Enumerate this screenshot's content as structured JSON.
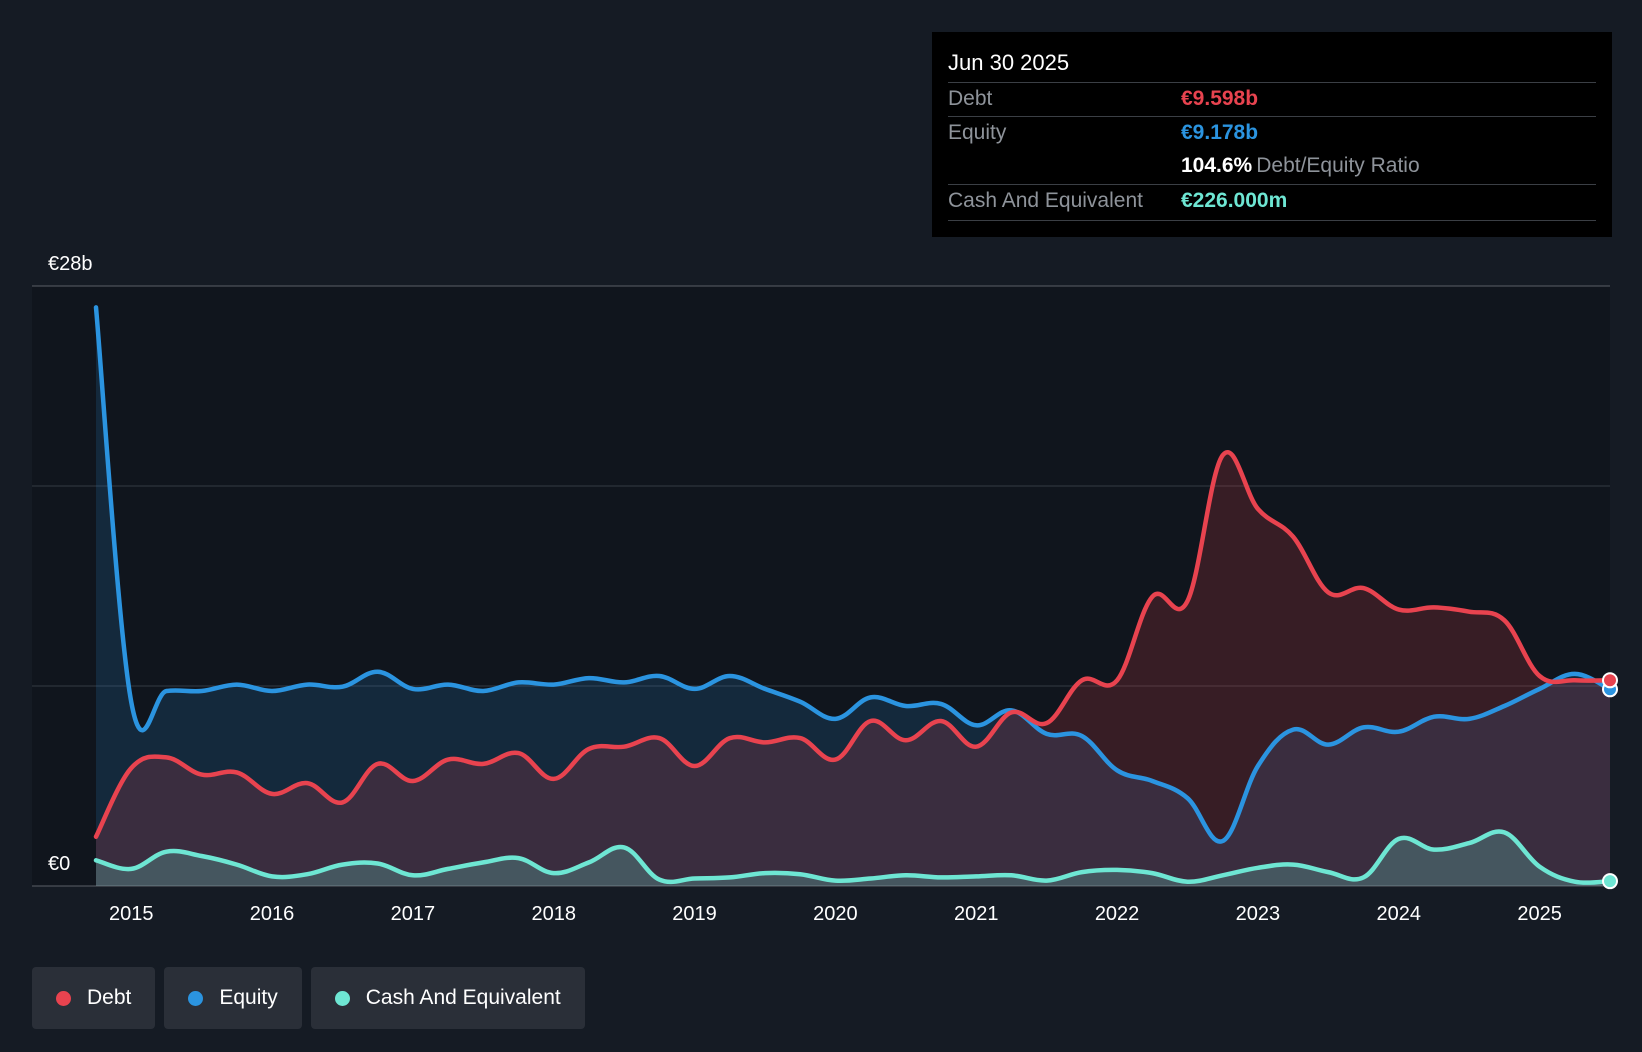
{
  "chart_data": {
    "type": "area",
    "ylabel_top": "€28b",
    "ylabel_bottom": "€0",
    "ylim": [
      0,
      28
    ],
    "xlim": [
      2014.75,
      2025.5
    ],
    "categories": [
      "2015",
      "2016",
      "2017",
      "2018",
      "2019",
      "2020",
      "2021",
      "2022",
      "2023",
      "2024",
      "2025"
    ],
    "series": [
      {
        "name": "Debt",
        "color": "#e8434f",
        "x": [
          2014.75,
          2015.0,
          2015.25,
          2015.5,
          2015.75,
          2016.0,
          2016.25,
          2016.5,
          2016.75,
          2017.0,
          2017.25,
          2017.5,
          2017.75,
          2018.0,
          2018.25,
          2018.5,
          2018.75,
          2019.0,
          2019.25,
          2019.5,
          2019.75,
          2020.0,
          2020.25,
          2020.5,
          2020.75,
          2021.0,
          2021.25,
          2021.5,
          2021.75,
          2022.0,
          2022.25,
          2022.5,
          2022.75,
          2023.0,
          2023.25,
          2023.5,
          2023.75,
          2024.0,
          2024.25,
          2024.5,
          2024.75,
          2025.0,
          2025.25,
          2025.5
        ],
        "values": [
          2.3,
          5.5,
          6.0,
          5.2,
          5.3,
          4.3,
          4.8,
          3.9,
          5.7,
          4.9,
          5.9,
          5.7,
          6.2,
          5.0,
          6.4,
          6.5,
          6.9,
          5.6,
          6.9,
          6.7,
          6.9,
          5.9,
          7.7,
          6.8,
          7.7,
          6.5,
          8.1,
          7.6,
          9.6,
          9.6,
          13.5,
          13.3,
          20.1,
          17.6,
          16.3,
          13.7,
          13.9,
          12.9,
          13.0,
          12.8,
          12.4,
          9.8,
          9.6,
          9.6
        ]
      },
      {
        "name": "Equity",
        "color": "#2b94e0",
        "x": [
          2014.75,
          2015.0,
          2015.25,
          2015.5,
          2015.75,
          2016.0,
          2016.25,
          2016.5,
          2016.75,
          2017.0,
          2017.25,
          2017.5,
          2017.75,
          2018.0,
          2018.25,
          2018.5,
          2018.75,
          2019.0,
          2019.25,
          2019.5,
          2019.75,
          2020.0,
          2020.25,
          2020.5,
          2020.75,
          2021.0,
          2021.25,
          2021.5,
          2021.75,
          2022.0,
          2022.25,
          2022.5,
          2022.75,
          2023.0,
          2023.25,
          2023.5,
          2023.75,
          2024.0,
          2024.25,
          2024.5,
          2024.75,
          2025.0,
          2025.25,
          2025.5
        ],
        "values": [
          27.0,
          8.6,
          9.1,
          9.1,
          9.4,
          9.1,
          9.4,
          9.3,
          10.0,
          9.2,
          9.4,
          9.1,
          9.5,
          9.4,
          9.7,
          9.5,
          9.8,
          9.2,
          9.8,
          9.2,
          8.6,
          7.8,
          8.8,
          8.4,
          8.5,
          7.5,
          8.2,
          7.1,
          7.0,
          5.4,
          4.9,
          4.1,
          2.1,
          5.6,
          7.3,
          6.6,
          7.4,
          7.2,
          7.9,
          7.8,
          8.4,
          9.2,
          9.9,
          9.18
        ]
      },
      {
        "name": "Cash And Equivalent",
        "color": "#6ee6d3",
        "x": [
          2014.75,
          2015.0,
          2015.25,
          2015.5,
          2015.75,
          2016.0,
          2016.25,
          2016.5,
          2016.75,
          2017.0,
          2017.25,
          2017.5,
          2017.75,
          2018.0,
          2018.25,
          2018.5,
          2018.75,
          2019.0,
          2019.25,
          2019.5,
          2019.75,
          2020.0,
          2020.25,
          2020.5,
          2020.75,
          2021.0,
          2021.25,
          2021.5,
          2021.75,
          2022.0,
          2022.25,
          2022.5,
          2022.75,
          2023.0,
          2023.25,
          2023.5,
          2023.75,
          2024.0,
          2024.25,
          2024.5,
          2024.75,
          2025.0,
          2025.25,
          2025.5
        ],
        "values": [
          1.2,
          0.8,
          1.6,
          1.4,
          1.0,
          0.45,
          0.55,
          1.0,
          1.05,
          0.5,
          0.8,
          1.1,
          1.3,
          0.6,
          1.1,
          1.8,
          0.3,
          0.35,
          0.4,
          0.6,
          0.55,
          0.25,
          0.35,
          0.5,
          0.4,
          0.45,
          0.5,
          0.25,
          0.65,
          0.75,
          0.6,
          0.2,
          0.5,
          0.85,
          1.0,
          0.65,
          0.4,
          2.2,
          1.7,
          2.0,
          2.5,
          0.9,
          0.2,
          0.226
        ]
      }
    ]
  },
  "tooltip": {
    "date": "Jun 30 2025",
    "debt_label": "Debt",
    "debt_value": "€9.598b",
    "equity_label": "Equity",
    "equity_value": "€9.178b",
    "ratio_value": "104.6%",
    "ratio_label": "Debt/Equity Ratio",
    "cash_label": "Cash And Equivalent",
    "cash_value": "€226.000m"
  },
  "legend": [
    {
      "label": "Debt",
      "color": "#e8434f"
    },
    {
      "label": "Equity",
      "color": "#2b94e0"
    },
    {
      "label": "Cash And Equivalent",
      "color": "#6ee6d3"
    }
  ]
}
